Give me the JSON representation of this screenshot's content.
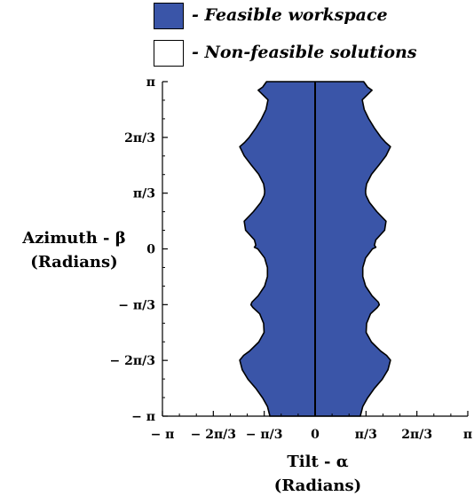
{
  "legend": {
    "items": [
      {
        "label": "- Feasible workspace",
        "color": "#3a55a8"
      },
      {
        "label": "- Non-feasible solutions",
        "color": "#ffffff"
      }
    ]
  },
  "chart_data": {
    "type": "area",
    "title": "",
    "xlabel_line1": "Tilt - α",
    "xlabel_line2": "(Radians)",
    "ylabel_line1": "Azimuth - β",
    "ylabel_line2": "(Radians)",
    "xlim": [
      -3.1416,
      3.1416
    ],
    "ylim": [
      -3.1416,
      3.1416
    ],
    "x_tick_labels": [
      "− π",
      "− 2π/3",
      "− π/3",
      "0",
      "π/3",
      "2π/3",
      "π"
    ],
    "x_tick_values": [
      -3.1416,
      -2.0944,
      -1.0472,
      0,
      1.0472,
      2.0944,
      3.1416
    ],
    "y_tick_labels": [
      "π",
      "2π/3",
      "π/3",
      "0",
      "− π/3",
      "− 2π/3",
      "− π"
    ],
    "y_tick_values": [
      3.1416,
      2.0944,
      1.0472,
      0,
      -1.0472,
      -2.0944,
      -3.1416
    ],
    "fill_color": "#3a55a8",
    "series": [
      {
        "name": "- Feasible workspace",
        "description_boundary": "right edge alpha as function of beta; left edge is mirror (-alpha)",
        "boundary_beta": [
          -3.1416,
          -2.96,
          -2.8,
          -2.62,
          -2.45,
          -2.27,
          -2.09,
          -2.0,
          -1.92,
          -1.75,
          -1.57,
          -1.4,
          -1.22,
          -1.1,
          -1.05,
          -1.0,
          -0.88,
          -0.7,
          -0.52,
          -0.35,
          -0.17,
          0.0,
          0.03,
          0.07,
          0.17,
          0.35,
          0.52,
          0.7,
          0.87,
          1.0,
          1.05,
          1.1,
          1.22,
          1.4,
          1.57,
          1.75,
          1.92,
          2.0,
          2.09,
          2.27,
          2.45,
          2.62,
          2.8,
          2.98,
          3.04,
          3.1416
        ],
        "boundary_alpha": [
          0.93,
          0.98,
          1.08,
          1.22,
          1.38,
          1.5,
          1.55,
          1.47,
          1.35,
          1.16,
          1.05,
          1.06,
          1.14,
          1.28,
          1.32,
          1.3,
          1.17,
          1.04,
          0.98,
          0.98,
          1.04,
          1.18,
          1.25,
          1.22,
          1.25,
          1.43,
          1.46,
          1.27,
          1.12,
          1.05,
          1.04,
          1.04,
          1.06,
          1.16,
          1.31,
          1.46,
          1.55,
          1.45,
          1.36,
          1.22,
          1.1,
          1.01,
          0.97,
          1.17,
          1.08,
          1.0
        ]
      }
    ],
    "vertical_line_x": 0
  }
}
